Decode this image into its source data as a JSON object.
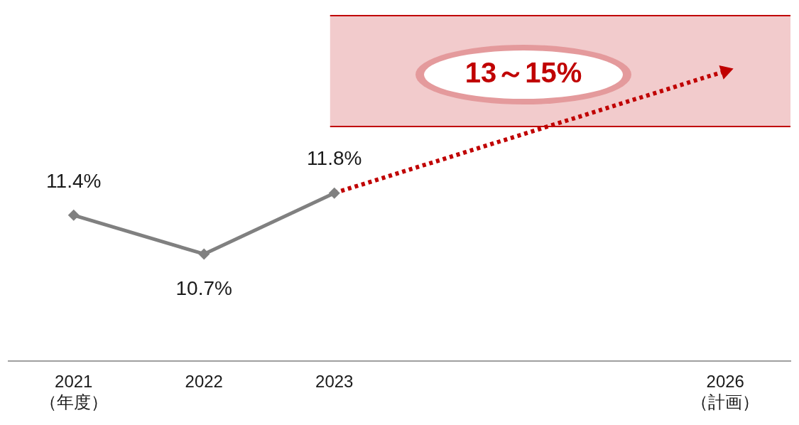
{
  "chart_data": {
    "type": "line",
    "categories": [
      "2021\n（年度）",
      "2022",
      "2023",
      null,
      null,
      "2026\n（計画）"
    ],
    "series": [
      {
        "color": "#808080",
        "values": [
          11.4,
          10.7,
          11.8,
          null,
          null,
          null
        ],
        "value_labels": [
          "11.4%",
          "10.7%",
          "11.8%",
          null,
          null,
          null
        ],
        "marker": "diamond",
        "line_style": "solid"
      },
      {
        "color": "#c00000",
        "values": [
          null,
          null,
          11.8,
          null,
          null,
          14
        ],
        "marker": "triangle",
        "line_style": "dotted"
      }
    ],
    "bands": [
      {
        "axis": "y",
        "from": 13,
        "to": 15,
        "label": "13～15%",
        "color": "#f2cbcc"
      }
    ],
    "tick_labels": "x",
    "grid": false,
    "legend": false
  }
}
